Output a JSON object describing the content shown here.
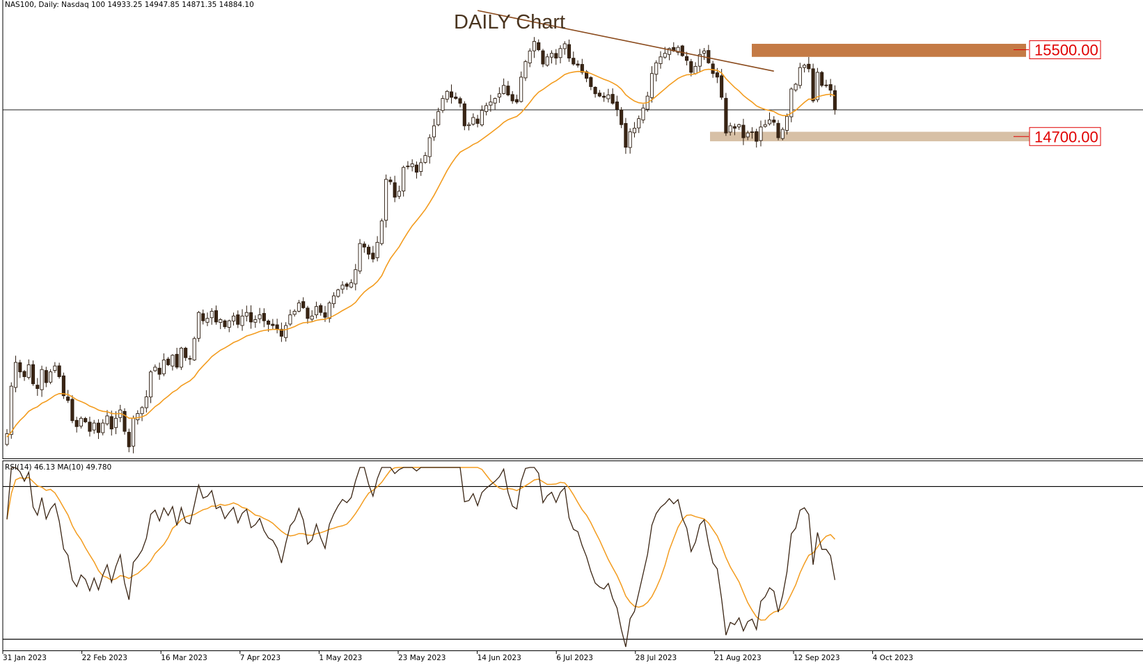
{
  "chart_data": {
    "type": "candlestick",
    "header": "NAS100, Daily:  Nasdaq 100  14933.25 14947.85 14871.35 14884.10",
    "title": "DAILY Chart",
    "x_tick_labels": [
      "31 Jan 2023",
      "22 Feb 2023",
      "16 Mar 2023",
      "7 Apr 2023",
      "1 May 2023",
      "23 May 2023",
      "14 Jun 2023",
      "6 Jul 2023",
      "28 Jul 2023",
      "21 Aug 2023",
      "12 Sep 2023",
      "4 Oct 2023"
    ],
    "ylim": [
      11970,
      15750
    ],
    "current_price": 14884.1,
    "moving_average_color": "#f39c1f",
    "closes": [
      12160,
      12560,
      12760,
      12680,
      12640,
      12740,
      12580,
      12540,
      12700,
      12590,
      12680,
      12730,
      12640,
      12480,
      12440,
      12270,
      12220,
      12290,
      12260,
      12180,
      12250,
      12170,
      12250,
      12310,
      12200,
      12290,
      12360,
      12180,
      12050,
      12290,
      12330,
      12380,
      12470,
      12680,
      12720,
      12660,
      12780,
      12740,
      12820,
      12720,
      12880,
      12800,
      12790,
      12960,
      13180,
      13110,
      13130,
      13190,
      13100,
      13120,
      13060,
      13110,
      13150,
      13080,
      13150,
      13180,
      13100,
      13120,
      13160,
      13110,
      13080,
      13070,
      13040,
      12980,
      13070,
      13160,
      13190,
      13260,
      13220,
      13130,
      13150,
      13230,
      13180,
      13140,
      13260,
      13320,
      13370,
      13410,
      13400,
      13430,
      13540,
      13760,
      13730,
      13670,
      13630,
      13770,
      13950,
      14300,
      14280,
      14150,
      14200,
      14400,
      14410,
      14430,
      14360,
      14440,
      14500,
      14650,
      14750,
      14870,
      14980,
      15040,
      14990,
      14980,
      14940,
      14750,
      14760,
      14820,
      14770,
      14880,
      14920,
      14950,
      14980,
      15020,
      15090,
      15010,
      14960,
      14950,
      15160,
      15290,
      15380,
      15460,
      15390,
      15270,
      15330,
      15360,
      15320,
      15400,
      15440,
      15320,
      15270,
      15260,
      15200,
      15150,
      15080,
      15020,
      15000,
      14990,
      15010,
      14940,
      14890,
      14760,
      14570,
      14700,
      14730,
      14810,
      14900,
      15000,
      15190,
      15280,
      15330,
      15360,
      15400,
      15380,
      15410,
      15340,
      15300,
      15200,
      15250,
      15350,
      15380,
      15280,
      15190,
      15160,
      14990,
      14690,
      14750,
      14730,
      14760,
      14650,
      14690,
      14700,
      14620,
      14740,
      14760,
      14800,
      14780,
      14650,
      14720,
      14830,
      15060,
      15100,
      15240,
      15260,
      15230,
      14960,
      15200,
      15090,
      15090,
      15050,
      14884
    ]
  },
  "subchart": {
    "label": "RSI(14) 46.13 MA(10) 49.780",
    "ylim": [
      28,
      75
    ],
    "levels": [
      70,
      30
    ],
    "rsi_color": "#3a2514",
    "ma_color": "#f39c1f"
  },
  "annotations": {
    "resistance_label": "15500.00",
    "resistance_zone": [
      15330,
      15440
    ],
    "resistance_zone_color": "#c47a45",
    "support_label": "14700.00",
    "support_zone": [
      14620,
      14700
    ],
    "support_zone_color": "#d7c0a6",
    "trendline_color": "#8a4a1c",
    "trendline_start": [
      108,
      15720
    ],
    "trendline_end": [
      176,
      15210
    ]
  }
}
